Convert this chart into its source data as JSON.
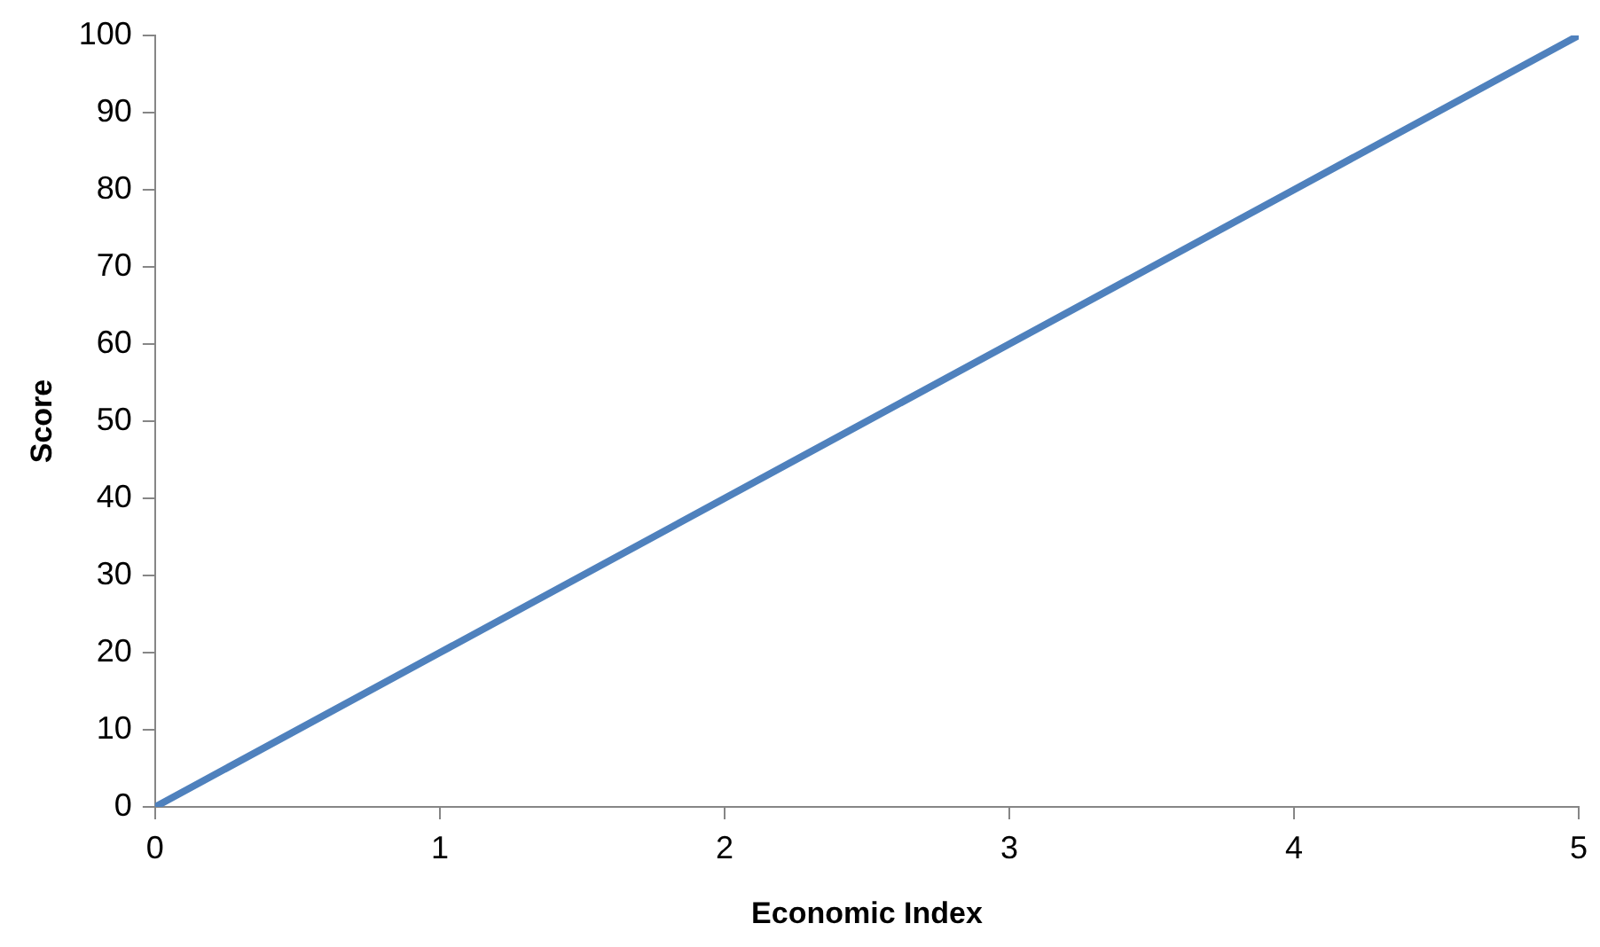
{
  "chart_data": {
    "type": "line",
    "xlabel": "Economic Index",
    "ylabel": "Score",
    "x": [
      0,
      1,
      2,
      3,
      4,
      5
    ],
    "series": [
      {
        "color": "#4f81bd",
        "values": [
          0,
          20,
          40,
          60,
          80,
          100
        ]
      }
    ],
    "xlim": [
      0,
      5
    ],
    "xticks": [
      0,
      1,
      2,
      3,
      4,
      5
    ],
    "ylim": [
      0,
      100
    ],
    "yticks": [
      0,
      10,
      20,
      30,
      40,
      50,
      60,
      70,
      80,
      90,
      100
    ],
    "grid": false,
    "legend": false,
    "marker": "none",
    "line_style": "solid"
  }
}
